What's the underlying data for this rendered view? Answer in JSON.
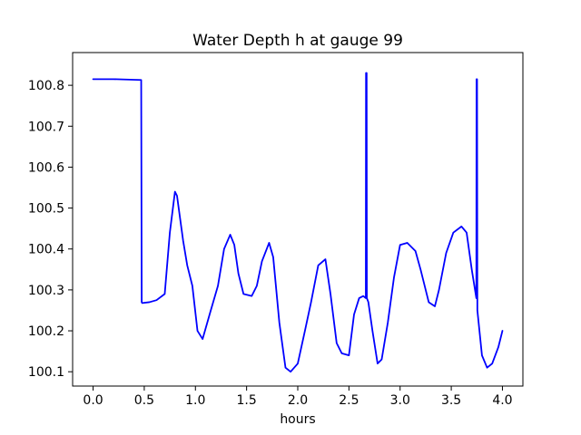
{
  "chart_data": {
    "type": "line",
    "title": "Water Depth h at gauge 99",
    "xlabel": "hours",
    "ylabel": "",
    "xlim": [
      -0.2,
      4.2
    ],
    "ylim": [
      100.065,
      100.88
    ],
    "xticks": [
      "0.0",
      "0.5",
      "1.0",
      "1.5",
      "2.0",
      "2.5",
      "3.0",
      "3.5",
      "4.0"
    ],
    "yticks": [
      "100.1",
      "100.2",
      "100.3",
      "100.4",
      "100.5",
      "100.6",
      "100.7",
      "100.8"
    ],
    "grid": false,
    "legend": "none",
    "series": [
      {
        "color": "#0000ff",
        "x": [
          0.0,
          0.2,
          0.47,
          0.475,
          0.48,
          0.55,
          0.62,
          0.7,
          0.75,
          0.8,
          0.82,
          0.88,
          0.92,
          0.97,
          1.02,
          1.07,
          1.15,
          1.22,
          1.28,
          1.34,
          1.38,
          1.42,
          1.47,
          1.55,
          1.6,
          1.65,
          1.72,
          1.76,
          1.82,
          1.88,
          1.93,
          2.0,
          2.07,
          2.13,
          2.2,
          2.27,
          2.32,
          2.38,
          2.43,
          2.5,
          2.55,
          2.6,
          2.64,
          2.665,
          2.667,
          2.673,
          2.675,
          2.69,
          2.73,
          2.78,
          2.82,
          2.88,
          2.94,
          3.0,
          3.07,
          3.15,
          3.2,
          3.28,
          3.34,
          3.38,
          3.45,
          3.52,
          3.6,
          3.65,
          3.7,
          3.745,
          3.747,
          3.752,
          3.755,
          3.8,
          3.85,
          3.9,
          3.96,
          4.0
        ],
        "y": [
          100.815,
          100.815,
          100.813,
          100.27,
          100.268,
          100.27,
          100.275,
          100.29,
          100.44,
          100.54,
          100.53,
          100.42,
          100.36,
          100.31,
          100.2,
          100.18,
          100.25,
          100.31,
          100.4,
          100.435,
          100.41,
          100.34,
          100.29,
          100.285,
          100.31,
          100.37,
          100.415,
          100.38,
          100.22,
          100.11,
          100.1,
          100.12,
          100.2,
          100.27,
          100.36,
          100.375,
          100.29,
          100.17,
          100.145,
          100.14,
          100.24,
          100.28,
          100.285,
          100.28,
          100.83,
          100.83,
          100.28,
          100.27,
          100.2,
          100.12,
          100.13,
          100.22,
          100.33,
          100.41,
          100.415,
          100.395,
          100.35,
          100.27,
          100.26,
          100.3,
          100.39,
          100.44,
          100.455,
          100.44,
          100.35,
          100.28,
          100.815,
          100.815,
          100.25,
          100.14,
          100.11,
          100.12,
          100.16,
          100.2
        ]
      }
    ]
  }
}
